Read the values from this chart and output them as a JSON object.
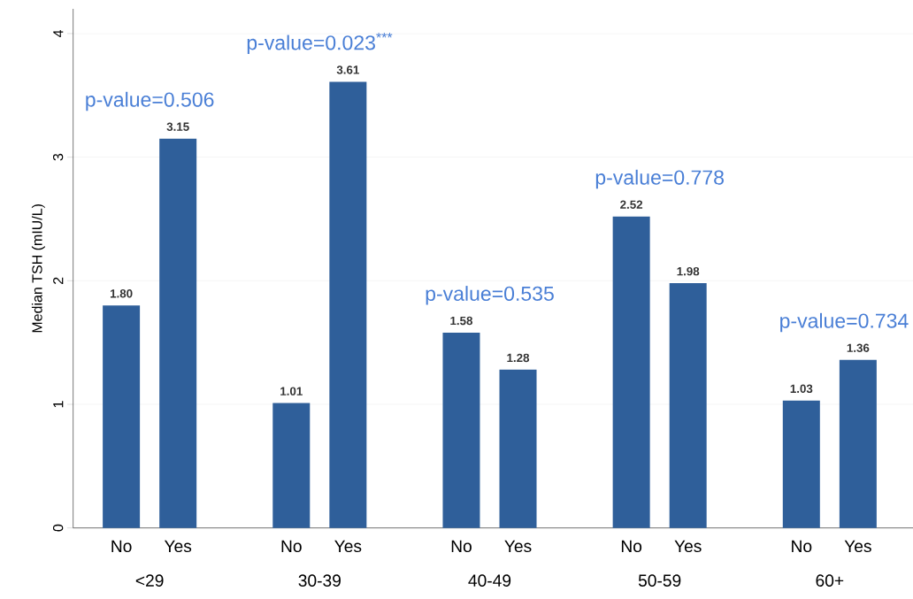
{
  "chart_data": {
    "type": "bar",
    "ylabel": "Median TSH (mIU/L)",
    "categories": [
      "No",
      "Yes",
      "No",
      "Yes",
      "No",
      "Yes",
      "No",
      "Yes",
      "No",
      "Yes"
    ],
    "values": [
      1.8,
      3.15,
      1.01,
      3.61,
      1.58,
      1.28,
      2.52,
      1.98,
      1.03,
      1.36
    ],
    "value_labels": [
      "1.80",
      "3.15",
      "1.01",
      "3.61",
      "1.58",
      "1.28",
      "2.52",
      "1.98",
      "1.03",
      "1.36"
    ],
    "color": "#2f5f9a",
    "ylim": [
      0,
      4.2
    ],
    "yticks": [
      0,
      1,
      2,
      3,
      4
    ],
    "grid": "y",
    "annotations": [
      "<29",
      "30-39",
      "40-49",
      "50-59",
      "60+",
      "p-value=0.506",
      "p-value=0.023$^{***}$",
      "p-value=0.535",
      "p-value=0.778",
      "p-value=0.734"
    ]
  }
}
